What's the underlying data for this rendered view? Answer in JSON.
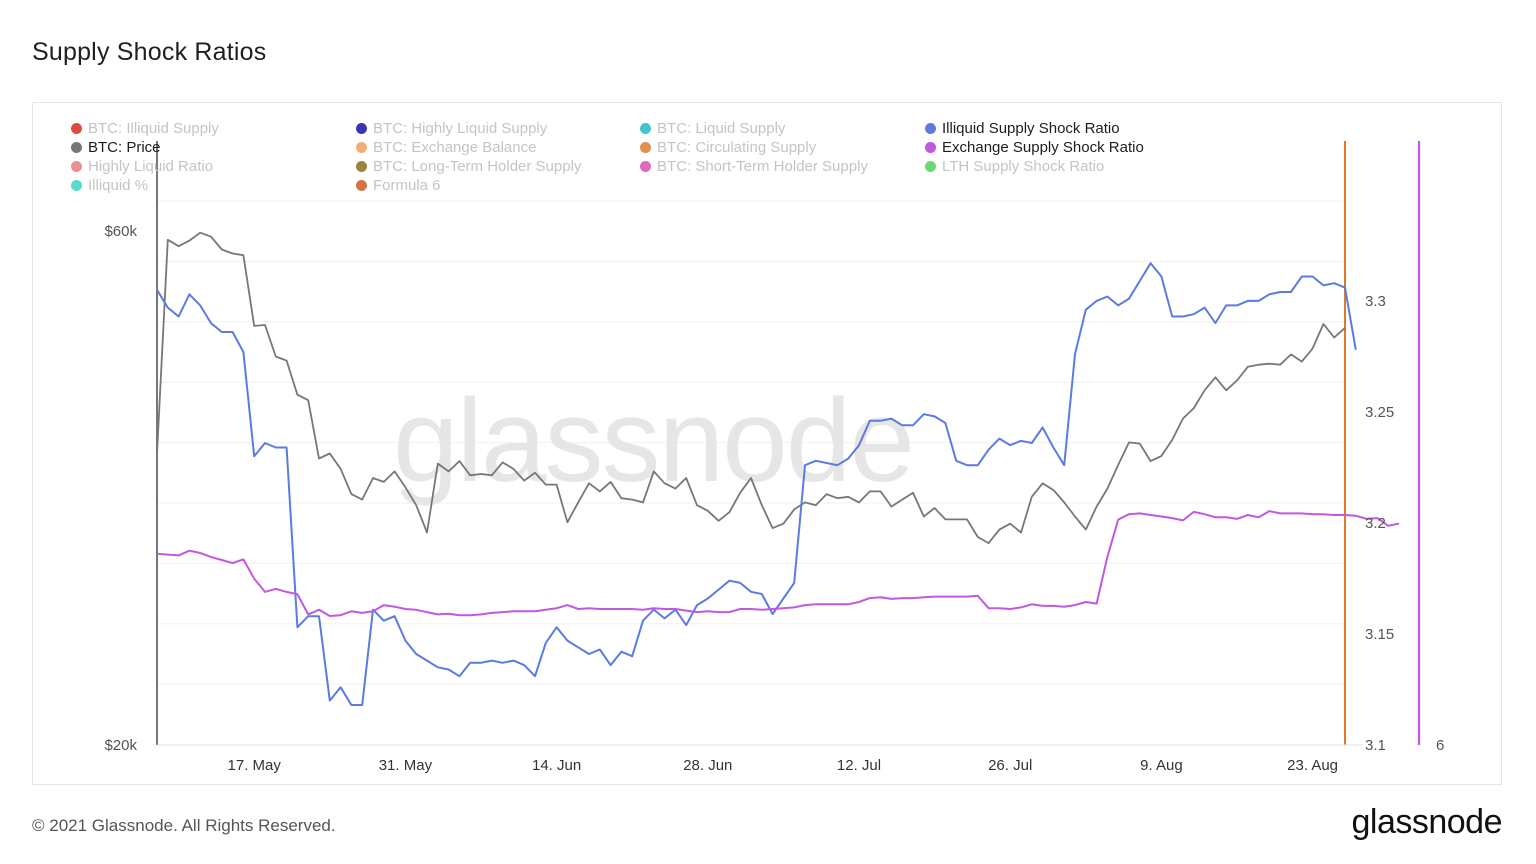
{
  "title": "Supply Shock Ratios",
  "watermark": "glassnode",
  "footer": {
    "copyright": "© 2021 Glassnode. All Rights Reserved.",
    "logo": "glassnode"
  },
  "legend": [
    {
      "label": "BTC: Illiquid Supply",
      "color": "#d62a1e",
      "active": false
    },
    {
      "label": "BTC: Highly Liquid Supply",
      "color": "#1a0fa8",
      "active": false
    },
    {
      "label": "BTC: Liquid Supply",
      "color": "#22b8c4",
      "active": false
    },
    {
      "label": "Illiquid Supply Shock Ratio",
      "color": "#5b7be0",
      "active": true
    },
    {
      "label": "BTC: Price",
      "color": "#777777",
      "active": true
    },
    {
      "label": "BTC: Exchange Balance",
      "color": "#f0a060",
      "active": false
    },
    {
      "label": "BTC: Circulating Supply",
      "color": "#e07a2a",
      "active": false
    },
    {
      "label": "Exchange Supply Shock Ratio",
      "color": "#c257e0",
      "active": true
    },
    {
      "label": "Highly Liquid Ratio",
      "color": "#e87b7b",
      "active": false
    },
    {
      "label": "BTC: Long-Term Holder Supply",
      "color": "#8a6d1e",
      "active": false
    },
    {
      "label": "BTC: Short-Term Holder Supply",
      "color": "#d94fb0",
      "active": false
    },
    {
      "label": "LTH Supply Shock Ratio",
      "color": "#4ed45a",
      "active": false
    },
    {
      "label": "Illiquid %",
      "color": "#3cd6c0",
      "active": false
    },
    {
      "label": "Formula 6",
      "color": "#c95a22",
      "active": false
    }
  ],
  "chart_data": {
    "type": "line",
    "x_start": "2021-05-08",
    "x_step_days": 1,
    "x_ticks": [
      {
        "label": "17. May",
        "date": "2021-05-17"
      },
      {
        "label": "31. May",
        "date": "2021-05-31"
      },
      {
        "label": "14. Jun",
        "date": "2021-06-14"
      },
      {
        "label": "28. Jun",
        "date": "2021-06-28"
      },
      {
        "label": "12. Jul",
        "date": "2021-07-12"
      },
      {
        "label": "26. Jul",
        "date": "2021-07-26"
      },
      {
        "label": "9. Aug",
        "date": "2021-08-09"
      },
      {
        "label": "23. Aug",
        "date": "2021-08-23"
      }
    ],
    "axes": {
      "price": {
        "scale": "log",
        "ticks": [
          "$20k",
          "$60k"
        ],
        "tick_values": [
          20000,
          60000
        ],
        "ylim": [
          20000,
          64000
        ],
        "color": "#777777"
      },
      "illiquid_ratio": {
        "scale": "linear",
        "ticks": [
          "3.1",
          "3.15",
          "3.2",
          "3.25",
          "3.3"
        ],
        "tick_values": [
          3.1,
          3.15,
          3.2,
          3.25,
          3.3
        ],
        "ylim": [
          3.1,
          3.345
        ],
        "color": "#e07a2a"
      },
      "exchange_ratio": {
        "scale": "linear",
        "ticks": [
          "6"
        ],
        "tick_values": [
          6
        ],
        "ylim": [
          6,
          13
        ],
        "color": "#c257e0"
      }
    },
    "series": [
      {
        "name": "BTC: Price",
        "color": "#777777",
        "axis": "price",
        "values": [
          56000,
          58900,
          58100,
          58800,
          59800,
          59300,
          57700,
          57200,
          57000,
          49000,
          49100,
          45900,
          45500,
          42300,
          41800,
          34400,
          37300,
          33900,
          34200,
          30800,
          35400,
          35100,
          35900,
          34700,
          33400,
          31500,
          36500,
          33400,
          36700,
          34600,
          33800,
          35600,
          33200,
          32700,
          33000,
          31200,
          33600,
          37700,
          36800,
          37400,
          38900,
          37200,
          37400,
          35700,
          35300,
          33900,
          32800,
          32800,
          33700,
          31500,
          32100,
          33600,
          33100,
          33400,
          34100,
          34400,
          32200,
          34400,
          35700,
          34700,
          35400,
          34200,
          33000,
          33100,
          33700,
          33300,
          33800,
          34500,
          33600,
          32800,
          32500,
          31600,
          32000,
          32000,
          32200,
          30600,
          32500,
          32700,
          33900,
          34700,
          35800,
          39100,
          40400,
          40100,
          42900,
          42000,
          38800,
          38400,
          39400,
          40300,
          41200,
          44000,
          46500,
          45700,
          46800,
          46200,
          45700,
          44400,
          47900,
          47800,
          45900,
          44800,
          44600,
          46400,
          51000,
          51800,
          49800,
          49300,
          48800,
          48900,
          49700
        ],
        "overlay_values": [
          37300,
          58900,
          58100,
          58800,
          59800,
          59300,
          57700,
          57200,
          57000,
          49000,
          49100,
          45900,
          45500,
          42300,
          41800,
          36900,
          37300,
          36100,
          34200,
          33800,
          35400,
          35100,
          35900,
          34700,
          33400,
          31500,
          36500,
          35900,
          36700,
          35600,
          35700,
          35600,
          36600,
          36100,
          35200,
          35800,
          34900,
          34900,
          32200,
          33600,
          35000,
          34400,
          35100,
          33900,
          33800,
          33600,
          35900,
          35000,
          34600,
          35400,
          33400,
          33000,
          32300,
          32900,
          34300,
          35400,
          33400,
          31800,
          32100,
          33100,
          33600,
          33400,
          34200,
          33900,
          34000,
          33600,
          34400,
          34400,
          33300,
          33800,
          34300,
          32600,
          33200,
          32400,
          32400,
          32400,
          31200,
          30800,
          31700,
          32100,
          31500,
          34000,
          35000,
          34500,
          33600,
          32600,
          31700,
          33300,
          34600,
          36400,
          38200,
          38100,
          36700,
          37100,
          38400,
          40200,
          41100,
          42700,
          43900,
          42700,
          43600,
          44900,
          45100,
          45200,
          45100,
          46100,
          45400,
          46700,
          49200,
          47800,
          48800
        ]
      },
      {
        "name": "Illiquid Supply Shock Ratio",
        "color": "#5b7be0",
        "axis": "illiquid_ratio",
        "values": [
          3.305,
          3.297,
          3.293,
          3.303,
          3.298,
          3.29,
          3.286,
          3.286,
          3.277,
          3.23,
          3.236,
          3.234,
          3.234,
          3.153,
          3.158,
          3.158,
          3.12,
          3.126,
          3.118,
          3.118,
          3.161,
          3.156,
          3.158,
          3.147,
          3.141,
          3.138,
          3.135,
          3.134,
          3.131,
          3.137,
          3.137,
          3.138,
          3.137,
          3.138,
          3.136,
          3.131,
          3.146,
          3.153,
          3.147,
          3.144,
          3.141,
          3.143,
          3.136,
          3.142,
          3.14,
          3.156,
          3.161,
          3.157,
          3.161,
          3.154,
          3.163,
          3.166,
          3.17,
          3.174,
          3.173,
          3.169,
          3.168,
          3.159,
          3.166,
          3.173,
          3.226,
          3.228,
          3.227,
          3.226,
          3.229,
          3.235,
          3.246,
          3.246,
          3.247,
          3.244,
          3.244,
          3.249,
          3.248,
          3.245,
          3.228,
          3.226,
          3.226,
          3.233,
          3.238,
          3.235,
          3.237,
          3.236,
          3.243,
          3.234,
          3.226,
          3.276,
          3.296,
          3.3,
          3.302,
          3.298,
          3.301,
          3.309,
          3.317,
          3.311,
          3.293,
          3.293,
          3.294,
          3.297,
          3.29,
          3.298,
          3.298,
          3.3,
          3.3,
          3.303,
          3.304,
          3.304,
          3.311,
          3.311,
          3.307,
          3.308,
          3.306,
          3.278
        ]
      },
      {
        "name": "Exchange Supply Shock Ratio",
        "color": "#c257e0",
        "axis": "exchange_ratio",
        "values": [
          8.46,
          8.45,
          8.44,
          8.5,
          8.47,
          8.42,
          8.38,
          8.34,
          8.39,
          8.14,
          7.97,
          8.01,
          7.97,
          7.94,
          7.68,
          7.74,
          7.66,
          7.67,
          7.72,
          7.7,
          7.72,
          7.8,
          7.78,
          7.75,
          7.74,
          7.71,
          7.68,
          7.69,
          7.67,
          7.67,
          7.68,
          7.7,
          7.71,
          7.72,
          7.72,
          7.72,
          7.74,
          7.76,
          7.8,
          7.75,
          7.76,
          7.75,
          7.75,
          7.75,
          7.75,
          7.74,
          7.76,
          7.75,
          7.75,
          7.73,
          7.71,
          7.72,
          7.71,
          7.71,
          7.75,
          7.75,
          7.74,
          7.75,
          7.76,
          7.77,
          7.8,
          7.81,
          7.81,
          7.81,
          7.81,
          7.84,
          7.89,
          7.9,
          7.88,
          7.89,
          7.89,
          7.9,
          7.91,
          7.91,
          7.91,
          7.91,
          7.92,
          7.76,
          7.76,
          7.75,
          7.77,
          7.81,
          7.79,
          7.79,
          7.78,
          7.8,
          7.84,
          7.82,
          8.42,
          8.9,
          8.97,
          8.98,
          8.96,
          8.94,
          8.92,
          8.89,
          9.0,
          8.97,
          8.93,
          8.93,
          8.91,
          8.96,
          8.93,
          9.01,
          8.98,
          8.98,
          8.98,
          8.97,
          8.97,
          8.96,
          8.96,
          8.95,
          8.91,
          8.92,
          8.82,
          8.85
        ]
      }
    ],
    "grid": true,
    "legend_position": "top"
  }
}
